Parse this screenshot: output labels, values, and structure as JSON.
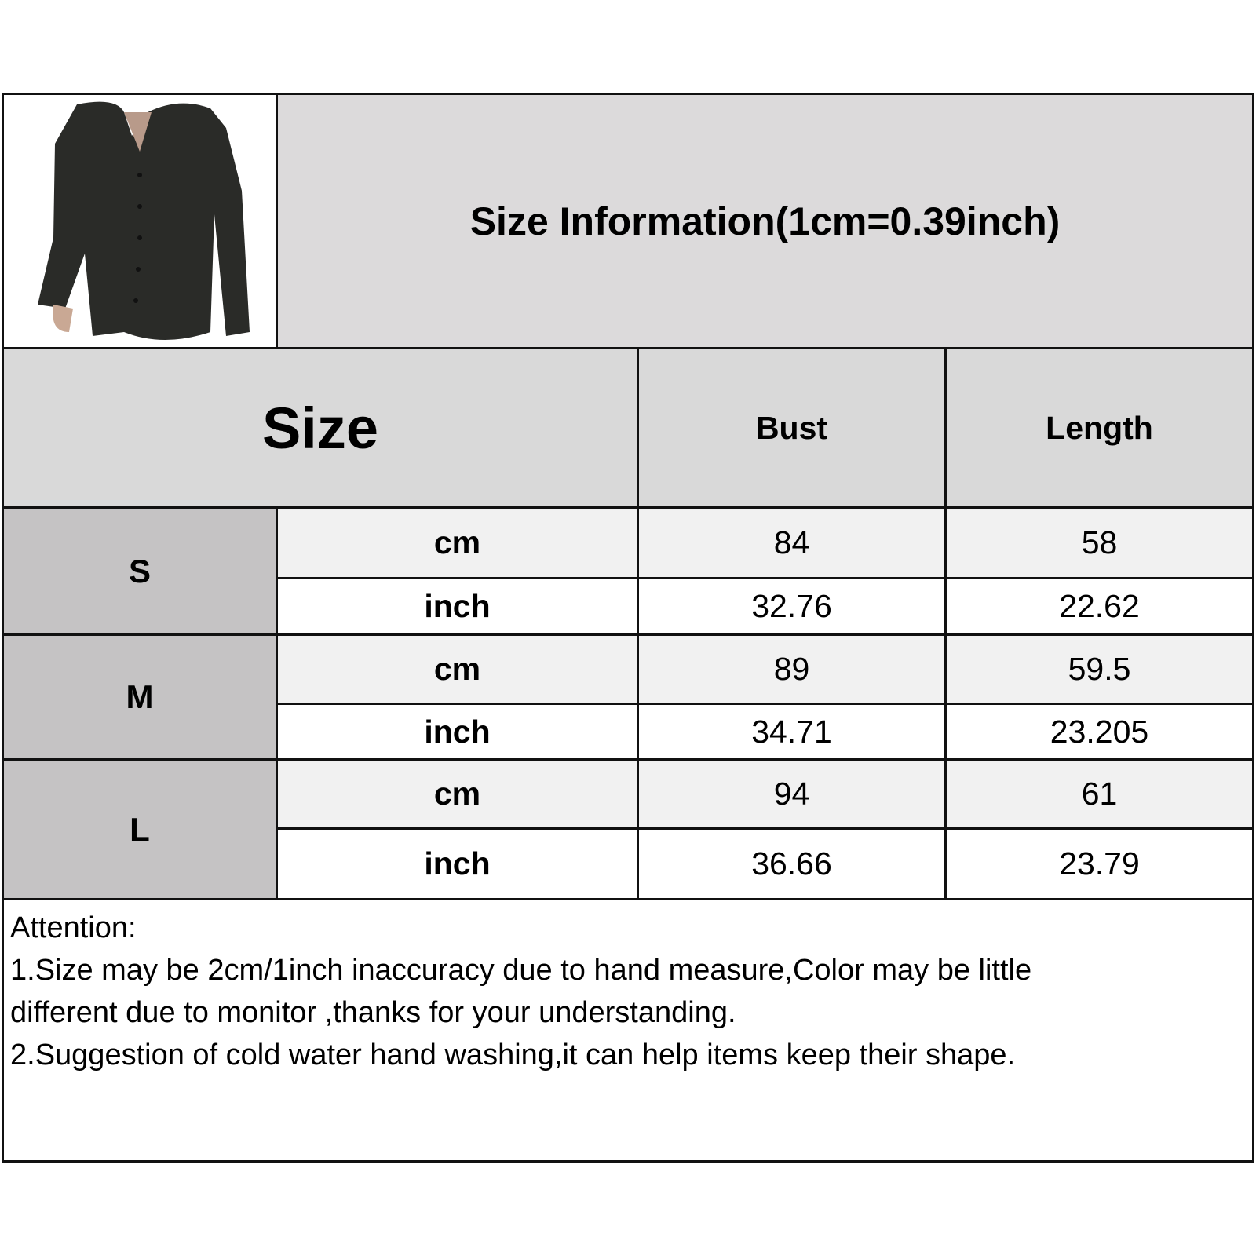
{
  "title": "Size Information(1cm=0.39inch)",
  "headers": {
    "size": "Size",
    "bust": "Bust",
    "length": "Length"
  },
  "rows": [
    {
      "size": "S",
      "cm": {
        "unit": "cm",
        "bust": "84",
        "length": "58"
      },
      "inch": {
        "unit": "inch",
        "bust": "32.76",
        "length": "22.62"
      }
    },
    {
      "size": "M",
      "cm": {
        "unit": "cm",
        "bust": "89",
        "length": "59.5"
      },
      "inch": {
        "unit": "inch",
        "bust": "34.71",
        "length": "23.205"
      }
    },
    {
      "size": "L",
      "cm": {
        "unit": "cm",
        "bust": "94",
        "length": "61"
      },
      "inch": {
        "unit": "inch",
        "bust": "36.66",
        "length": "23.79"
      }
    }
  ],
  "attention": {
    "heading": "Attention:",
    "lines": [
      "1.Size may be 2cm/1inch inaccuracy due to hand measure,Color may be little",
      "different due to monitor ,thanks for your understanding.",
      "2.Suggestion of cold water hand washing,it can help items keep their shape."
    ]
  },
  "colors": {
    "title_bg": "#dcdadb",
    "header_bg": "#d9d9d9",
    "size_bg": "#c5c3c4",
    "cm_row_bg": "#f1f1f1",
    "inch_row_bg": "#ffffff",
    "border": "#111111"
  },
  "product_image": "product-photo-black-ribbed-button-cardigan"
}
